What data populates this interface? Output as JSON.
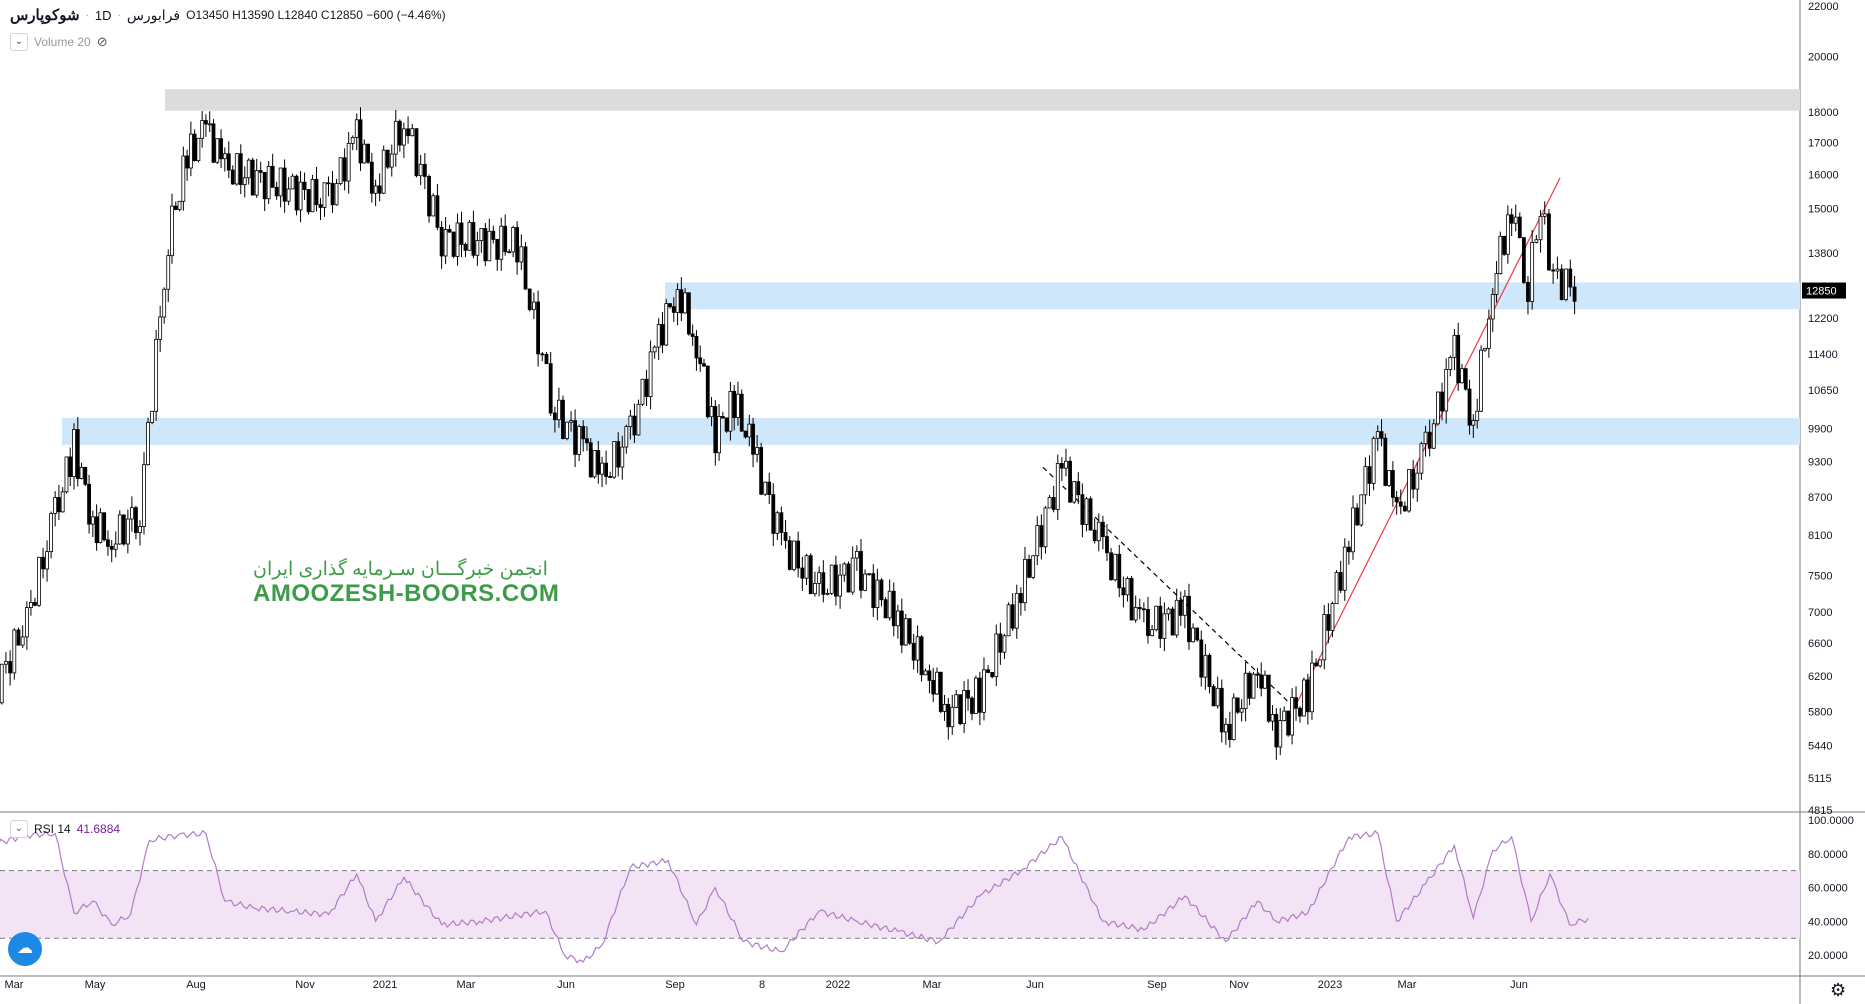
{
  "header": {
    "symbol": "شوکوپارس",
    "exchange": "فرابورس",
    "interval": "1D",
    "ohlc_text": "O13450  H13590  L12840  C12850  −600 (−4.46%)"
  },
  "volume_indicator": {
    "label": "Volume 20",
    "toggle_icon": "eye-crossed-icon",
    "expand_icon": "chevron-down-icon"
  },
  "rsi_indicator": {
    "label": "RSI 14",
    "value": "41.6884",
    "expand_icon": "chevron-down-icon"
  },
  "watermark": {
    "line1": "انجمن خبرگـــان سـرمایه گذاری ایران",
    "line2": "AMOOZESH-BOORS.COM"
  },
  "colors": {
    "candle": "#000000",
    "support_zone": "#cfe7fb",
    "resistance_zone": "#dcdcdc",
    "trendline": "#f23645",
    "dashed_line": "#000000",
    "rsi_line": "#b07cc6",
    "rsi_band": "#f3e4f5",
    "watermark": "#3e9b4a",
    "price_tag_bg": "#000000"
  },
  "chart_data": [
    {
      "type": "candlestick",
      "title": "",
      "last_price": "12850",
      "y_scale": "log",
      "ylim": [
        4815,
        22000
      ],
      "y_ticks": [
        "22000",
        "20000",
        "18000",
        "17000",
        "16000",
        "15000",
        "13800",
        "12850",
        "12200",
        "11400",
        "10650",
        "9900",
        "9300",
        "8700",
        "8100",
        "7500",
        "7000",
        "6600",
        "6200",
        "5800",
        "5440",
        "5115",
        "4815"
      ],
      "x_ticks": [
        "Mar",
        "May",
        "Aug",
        "Nov",
        "2021",
        "Mar",
        "Jun",
        "Sep",
        "8",
        "2022",
        "Mar",
        "Jun",
        "Sep",
        "Nov",
        "2023",
        "Mar",
        "Jun"
      ],
      "zones": [
        {
          "name": "resistance",
          "from": 18050,
          "to": 18800
        },
        {
          "name": "support-upper",
          "from": 12400,
          "to": 13050
        },
        {
          "name": "support-lower",
          "from": 9600,
          "to": 10100
        }
      ],
      "trendlines": [
        {
          "style": "dashed",
          "from": {
            "x": "Jun 2022",
            "y": 9200
          },
          "to": {
            "x": "Dec 2022",
            "y": 5900
          }
        },
        {
          "style": "solid-red",
          "from": {
            "x": "Dec 2022",
            "y": 5720
          },
          "to": {
            "x": "Jul 2023",
            "y": 15900
          }
        }
      ],
      "series": [
        {
          "key": "close_path",
          "values": [
            [
              "Feb 2020",
              5900
            ],
            [
              "Mar 2020",
              6900
            ],
            [
              "Apr 2020",
              8400
            ],
            [
              "Apr 2020",
              9600
            ],
            [
              "May 2020",
              8300
            ],
            [
              "May 2020",
              8000
            ],
            [
              "Jun 2020",
              8500
            ],
            [
              "Jul 2020",
              14200
            ],
            [
              "Jul 2020",
              16500
            ],
            [
              "Aug 2020",
              17500
            ],
            [
              "Aug 2020",
              16200
            ],
            [
              "Nov 2020",
              15200
            ],
            [
              "Dec 2020",
              17300
            ],
            [
              "Dec 2020",
              15600
            ],
            [
              "Jan 2021",
              17800
            ],
            [
              "Feb 2021",
              14200
            ],
            [
              "Apr 2021",
              14000
            ],
            [
              "May 2021",
              10200
            ],
            [
              "Jun 2021",
              9600
            ],
            [
              "Jun 2021",
              9000
            ],
            [
              "Jul 2021",
              9800
            ],
            [
              "Aug 2021",
              11800
            ],
            [
              "Aug 2021",
              12900
            ],
            [
              "Sep 2021",
              11600
            ],
            [
              "Sep 2021",
              9800
            ],
            [
              "Oct 2021",
              10400
            ],
            [
              "Oct 2021",
              9500
            ],
            [
              "Nov 2021",
              8000
            ],
            [
              "Dec 2021",
              7300
            ],
            [
              "Jan 2022",
              7600
            ],
            [
              "Feb 2022",
              6900
            ],
            [
              "Mar 2022",
              6200
            ],
            [
              "Mar 2022",
              5800
            ],
            [
              "Apr 2022",
              6000
            ],
            [
              "May 2022",
              7300
            ],
            [
              "Jun 2022",
              9200
            ],
            [
              "Jul 2022",
              7900
            ],
            [
              "Aug 2022",
              6800
            ],
            [
              "Sep 2022",
              7000
            ],
            [
              "Oct 2022",
              5600
            ],
            [
              "Nov 2022",
              6300
            ],
            [
              "Nov 2022",
              5600
            ],
            [
              "Dec 2022",
              6000
            ],
            [
              "Jan 2023",
              8000
            ],
            [
              "Feb 2023",
              9800
            ],
            [
              "Feb 2023",
              8400
            ],
            [
              "Mar 2023",
              9500
            ],
            [
              "Apr 2023",
              11500
            ],
            [
              "Apr 2023",
              10000
            ],
            [
              "May 2023",
              13000
            ],
            [
              "May 2023",
              15100
            ],
            [
              "Jun 2023",
              13000
            ],
            [
              "Jun 2023",
              15000
            ],
            [
              "Jun 2023",
              13200
            ],
            [
              "Jul 2023",
              12850
            ]
          ]
        }
      ]
    },
    {
      "type": "line",
      "title": "",
      "ylim": [
        10,
        100
      ],
      "y_ticks": [
        "100.0000",
        "80.0000",
        "60.0000",
        "40.0000",
        "20.0000"
      ],
      "bands": {
        "upper": 70,
        "lower": 30
      },
      "series": [
        {
          "key": "rsi",
          "values": [
            [
              "Feb 2020",
              85
            ],
            [
              "Mar 2020",
              91
            ],
            [
              "Apr 2020",
              92
            ],
            [
              "Apr 2020",
              45
            ],
            [
              "May 2020",
              52
            ],
            [
              "May 2020",
              38
            ],
            [
              "Jun 2020",
              44
            ],
            [
              "Jun 2020",
              88
            ],
            [
              "Jul 2020",
              91
            ],
            [
              "Aug 2020",
              92
            ],
            [
              "Aug 2020",
              52
            ],
            [
              "Sep 2020",
              48
            ],
            [
              "Oct 2020",
              46
            ],
            [
              "Nov 2020",
              44
            ],
            [
              "Dec 2020",
              68
            ],
            [
              "Dec 2020",
              40
            ],
            [
              "Jan 2021",
              66
            ],
            [
              "Feb 2021",
              38
            ],
            [
              "Mar 2021",
              40
            ],
            [
              "May 2021",
              46
            ],
            [
              "May 2021",
              20
            ],
            [
              "Jun 2021",
              16
            ],
            [
              "Jun 2021",
              26
            ],
            [
              "Jul 2021",
              72
            ],
            [
              "Aug 2021",
              76
            ],
            [
              "Sep 2021",
              38
            ],
            [
              "Sep 2021",
              60
            ],
            [
              "Oct 2021",
              28
            ],
            [
              "Nov 2021",
              22
            ],
            [
              "Dec 2021",
              46
            ],
            [
              "Jan 2022",
              40
            ],
            [
              "Feb 2022",
              34
            ],
            [
              "Mar 2022",
              28
            ],
            [
              "Apr 2022",
              55
            ],
            [
              "May 2022",
              70
            ],
            [
              "Jun 2022",
              90
            ],
            [
              "Jul 2022",
              40
            ],
            [
              "Aug 2022",
              35
            ],
            [
              "Sep 2022",
              55
            ],
            [
              "Oct 2022",
              28
            ],
            [
              "Nov 2022",
              52
            ],
            [
              "Nov 2022",
              40
            ],
            [
              "Dec 2022",
              45
            ],
            [
              "Jan 2023",
              90
            ],
            [
              "Feb 2023",
              92
            ],
            [
              "Feb 2023",
              40
            ],
            [
              "Mar 2023",
              62
            ],
            [
              "Apr 2023",
              85
            ],
            [
              "Apr 2023",
              42
            ],
            [
              "May 2023",
              82
            ],
            [
              "May 2023",
              90
            ],
            [
              "Jun 2023",
              40
            ],
            [
              "Jun 2023",
              68
            ],
            [
              "Jul 2023",
              38
            ],
            [
              "Jul 2023",
              41.6884
            ]
          ]
        }
      ]
    }
  ]
}
